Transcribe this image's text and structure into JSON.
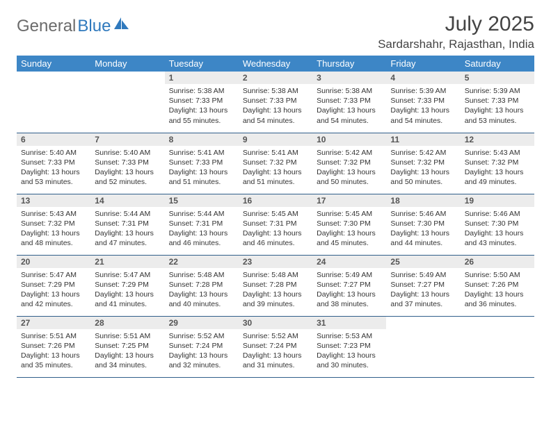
{
  "brand": {
    "part1": "General",
    "part2": "Blue"
  },
  "title": "July 2025",
  "location": "Sardarshahr, Rajasthan, India",
  "colors": {
    "header_bg": "#3d86c6",
    "header_text": "#ffffff",
    "daynum_bg": "#ececec",
    "rule": "#2f5e8a",
    "brand_gray": "#6b6b6b",
    "brand_blue": "#2f79bd"
  },
  "weekdays": [
    "Sunday",
    "Monday",
    "Tuesday",
    "Wednesday",
    "Thursday",
    "Friday",
    "Saturday"
  ],
  "weeks": [
    [
      null,
      null,
      {
        "n": "1",
        "sr": "Sunrise: 5:38 AM",
        "ss": "Sunset: 7:33 PM",
        "dl": "Daylight: 13 hours and 55 minutes."
      },
      {
        "n": "2",
        "sr": "Sunrise: 5:38 AM",
        "ss": "Sunset: 7:33 PM",
        "dl": "Daylight: 13 hours and 54 minutes."
      },
      {
        "n": "3",
        "sr": "Sunrise: 5:38 AM",
        "ss": "Sunset: 7:33 PM",
        "dl": "Daylight: 13 hours and 54 minutes."
      },
      {
        "n": "4",
        "sr": "Sunrise: 5:39 AM",
        "ss": "Sunset: 7:33 PM",
        "dl": "Daylight: 13 hours and 54 minutes."
      },
      {
        "n": "5",
        "sr": "Sunrise: 5:39 AM",
        "ss": "Sunset: 7:33 PM",
        "dl": "Daylight: 13 hours and 53 minutes."
      }
    ],
    [
      {
        "n": "6",
        "sr": "Sunrise: 5:40 AM",
        "ss": "Sunset: 7:33 PM",
        "dl": "Daylight: 13 hours and 53 minutes."
      },
      {
        "n": "7",
        "sr": "Sunrise: 5:40 AM",
        "ss": "Sunset: 7:33 PM",
        "dl": "Daylight: 13 hours and 52 minutes."
      },
      {
        "n": "8",
        "sr": "Sunrise: 5:41 AM",
        "ss": "Sunset: 7:33 PM",
        "dl": "Daylight: 13 hours and 51 minutes."
      },
      {
        "n": "9",
        "sr": "Sunrise: 5:41 AM",
        "ss": "Sunset: 7:32 PM",
        "dl": "Daylight: 13 hours and 51 minutes."
      },
      {
        "n": "10",
        "sr": "Sunrise: 5:42 AM",
        "ss": "Sunset: 7:32 PM",
        "dl": "Daylight: 13 hours and 50 minutes."
      },
      {
        "n": "11",
        "sr": "Sunrise: 5:42 AM",
        "ss": "Sunset: 7:32 PM",
        "dl": "Daylight: 13 hours and 50 minutes."
      },
      {
        "n": "12",
        "sr": "Sunrise: 5:43 AM",
        "ss": "Sunset: 7:32 PM",
        "dl": "Daylight: 13 hours and 49 minutes."
      }
    ],
    [
      {
        "n": "13",
        "sr": "Sunrise: 5:43 AM",
        "ss": "Sunset: 7:32 PM",
        "dl": "Daylight: 13 hours and 48 minutes."
      },
      {
        "n": "14",
        "sr": "Sunrise: 5:44 AM",
        "ss": "Sunset: 7:31 PM",
        "dl": "Daylight: 13 hours and 47 minutes."
      },
      {
        "n": "15",
        "sr": "Sunrise: 5:44 AM",
        "ss": "Sunset: 7:31 PM",
        "dl": "Daylight: 13 hours and 46 minutes."
      },
      {
        "n": "16",
        "sr": "Sunrise: 5:45 AM",
        "ss": "Sunset: 7:31 PM",
        "dl": "Daylight: 13 hours and 46 minutes."
      },
      {
        "n": "17",
        "sr": "Sunrise: 5:45 AM",
        "ss": "Sunset: 7:30 PM",
        "dl": "Daylight: 13 hours and 45 minutes."
      },
      {
        "n": "18",
        "sr": "Sunrise: 5:46 AM",
        "ss": "Sunset: 7:30 PM",
        "dl": "Daylight: 13 hours and 44 minutes."
      },
      {
        "n": "19",
        "sr": "Sunrise: 5:46 AM",
        "ss": "Sunset: 7:30 PM",
        "dl": "Daylight: 13 hours and 43 minutes."
      }
    ],
    [
      {
        "n": "20",
        "sr": "Sunrise: 5:47 AM",
        "ss": "Sunset: 7:29 PM",
        "dl": "Daylight: 13 hours and 42 minutes."
      },
      {
        "n": "21",
        "sr": "Sunrise: 5:47 AM",
        "ss": "Sunset: 7:29 PM",
        "dl": "Daylight: 13 hours and 41 minutes."
      },
      {
        "n": "22",
        "sr": "Sunrise: 5:48 AM",
        "ss": "Sunset: 7:28 PM",
        "dl": "Daylight: 13 hours and 40 minutes."
      },
      {
        "n": "23",
        "sr": "Sunrise: 5:48 AM",
        "ss": "Sunset: 7:28 PM",
        "dl": "Daylight: 13 hours and 39 minutes."
      },
      {
        "n": "24",
        "sr": "Sunrise: 5:49 AM",
        "ss": "Sunset: 7:27 PM",
        "dl": "Daylight: 13 hours and 38 minutes."
      },
      {
        "n": "25",
        "sr": "Sunrise: 5:49 AM",
        "ss": "Sunset: 7:27 PM",
        "dl": "Daylight: 13 hours and 37 minutes."
      },
      {
        "n": "26",
        "sr": "Sunrise: 5:50 AM",
        "ss": "Sunset: 7:26 PM",
        "dl": "Daylight: 13 hours and 36 minutes."
      }
    ],
    [
      {
        "n": "27",
        "sr": "Sunrise: 5:51 AM",
        "ss": "Sunset: 7:26 PM",
        "dl": "Daylight: 13 hours and 35 minutes."
      },
      {
        "n": "28",
        "sr": "Sunrise: 5:51 AM",
        "ss": "Sunset: 7:25 PM",
        "dl": "Daylight: 13 hours and 34 minutes."
      },
      {
        "n": "29",
        "sr": "Sunrise: 5:52 AM",
        "ss": "Sunset: 7:24 PM",
        "dl": "Daylight: 13 hours and 32 minutes."
      },
      {
        "n": "30",
        "sr": "Sunrise: 5:52 AM",
        "ss": "Sunset: 7:24 PM",
        "dl": "Daylight: 13 hours and 31 minutes."
      },
      {
        "n": "31",
        "sr": "Sunrise: 5:53 AM",
        "ss": "Sunset: 7:23 PM",
        "dl": "Daylight: 13 hours and 30 minutes."
      },
      null,
      null
    ]
  ]
}
